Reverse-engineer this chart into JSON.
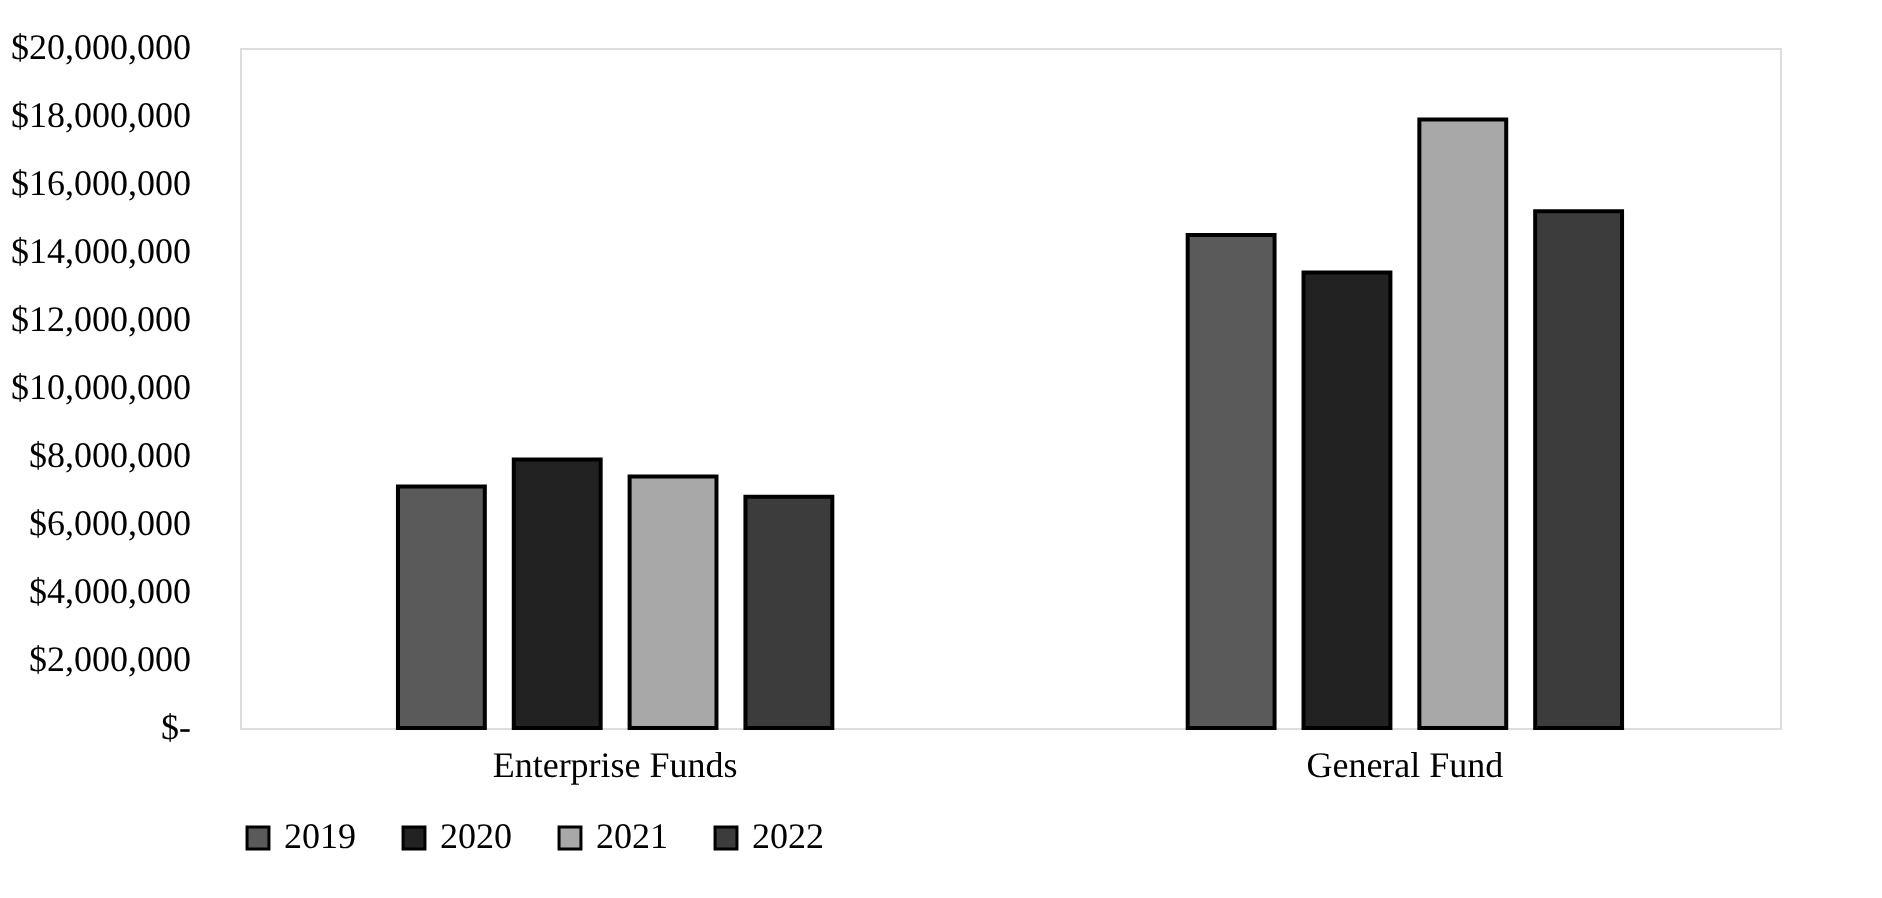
{
  "chart_data": {
    "type": "bar",
    "categories": [
      "Enterprise Funds",
      "General Fund"
    ],
    "series": [
      {
        "name": "2019",
        "color": "#5a5a5a",
        "values": [
          7100000,
          14500000
        ]
      },
      {
        "name": "2020",
        "color": "#222222",
        "values": [
          7900000,
          13400000
        ]
      },
      {
        "name": "2021",
        "color": "#a8a8a8",
        "values": [
          7400000,
          17900000
        ]
      },
      {
        "name": "2022",
        "color": "#3c3c3c",
        "values": [
          6800000,
          15200000
        ]
      }
    ],
    "ylim": [
      0,
      20000000
    ],
    "yticks": [
      {
        "value": 0,
        "label": "$-"
      },
      {
        "value": 2000000,
        "label": "$2,000,000"
      },
      {
        "value": 4000000,
        "label": "$4,000,000"
      },
      {
        "value": 6000000,
        "label": "$6,000,000"
      },
      {
        "value": 8000000,
        "label": "$8,000,000"
      },
      {
        "value": 10000000,
        "label": "$10,000,000"
      },
      {
        "value": 12000000,
        "label": "$12,000,000"
      },
      {
        "value": 14000000,
        "label": "$14,000,000"
      },
      {
        "value": 16000000,
        "label": "$16,000,000"
      },
      {
        "value": 18000000,
        "label": "$18,000,000"
      },
      {
        "value": 20000000,
        "label": "$20,000,000"
      }
    ],
    "grid": false,
    "legend": "bottom"
  }
}
